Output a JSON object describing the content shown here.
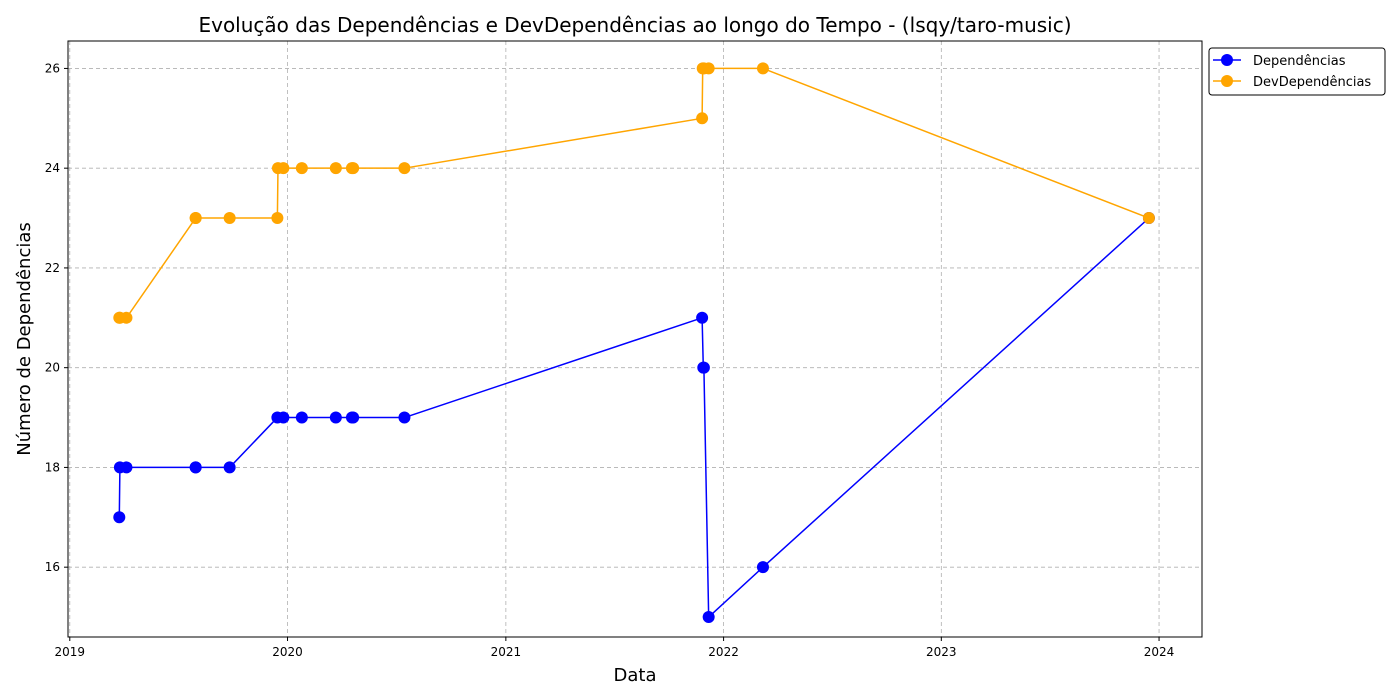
{
  "chart_data": {
    "type": "line",
    "title": "Evolução das Dependências e DevDependências ao longo do Tempo - (lsqy/taro-music)",
    "xlabel": "Data",
    "ylabel": "Número de Dependências",
    "x_ticks": [
      "2019",
      "2020",
      "2021",
      "2022",
      "2023",
      "2024"
    ],
    "y_ticks": [
      16,
      18,
      20,
      22,
      24,
      26
    ],
    "xlim": [
      "2018-12-29",
      "2024-03-13"
    ],
    "ylim": [
      14.6,
      26.55
    ],
    "grid": true,
    "legend_position": "outside-top-right",
    "series": [
      {
        "name": "Dependências",
        "color": "#0000ff",
        "x": [
          "2019-03-25",
          "2019-03-26",
          "2019-04-06",
          "2019-07-31",
          "2019-07-31",
          "2019-09-26",
          "2019-12-15",
          "2019-12-25",
          "2020-01-25",
          "2020-03-22",
          "2020-04-18",
          "2020-04-20",
          "2020-07-15",
          "2021-11-26",
          "2021-11-28",
          "2021-11-29",
          "2021-12-07",
          "2022-03-08",
          "2023-12-15"
        ],
        "y": [
          17,
          18,
          18,
          18,
          18,
          18,
          19,
          19,
          19,
          19,
          19,
          19,
          19,
          21,
          20,
          20,
          15,
          16,
          23
        ]
      },
      {
        "name": "DevDependências",
        "color": "#ffa500",
        "x": [
          "2019-03-25",
          "2019-03-26",
          "2019-04-06",
          "2019-07-31",
          "2019-07-31",
          "2019-09-26",
          "2019-12-15",
          "2019-12-16",
          "2019-12-25",
          "2020-01-25",
          "2020-03-22",
          "2020-04-18",
          "2020-04-20",
          "2020-07-15",
          "2021-11-26",
          "2021-11-27",
          "2021-11-29",
          "2021-12-07",
          "2022-03-08",
          "2023-12-15"
        ],
        "y": [
          21,
          21,
          21,
          23,
          23,
          23,
          23,
          24,
          24,
          24,
          24,
          24,
          24,
          24,
          25,
          26,
          26,
          26,
          26,
          23
        ]
      }
    ]
  }
}
